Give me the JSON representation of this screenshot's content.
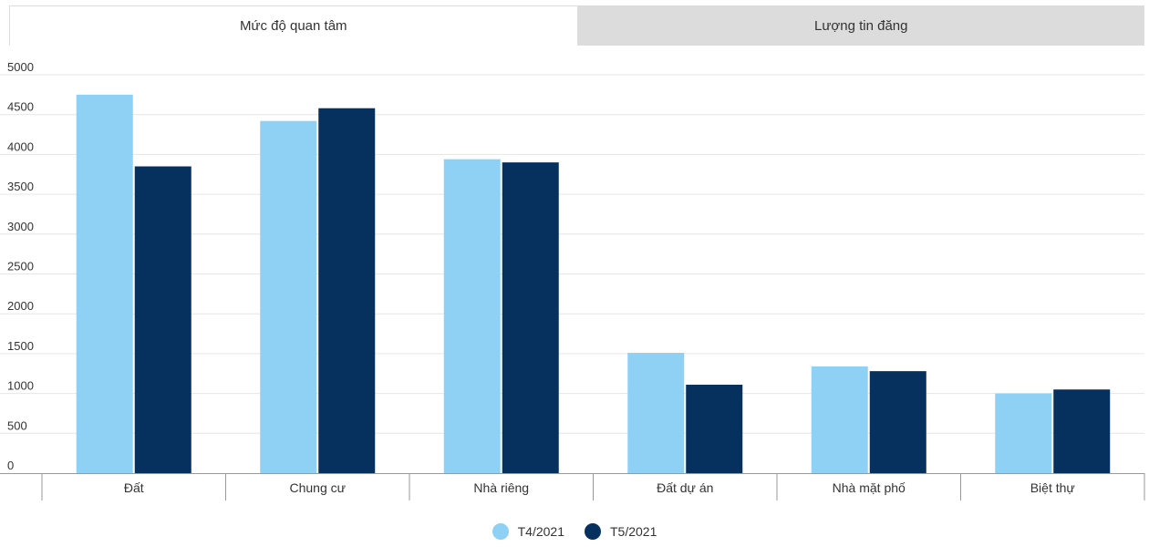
{
  "tabs": [
    {
      "label": "Mức độ quan tâm",
      "active": true
    },
    {
      "label": "Lượng tin đăng",
      "active": false
    }
  ],
  "colors": {
    "series1": "#8fd0f5",
    "series2": "#06305e",
    "grid": "#e6e6e6",
    "axis": "#999999"
  },
  "chart_data": {
    "type": "bar",
    "categories": [
      "Đất",
      "Chung cư",
      "Nhà riêng",
      "Đất dự án",
      "Nhà mặt phố",
      "Biệt thự"
    ],
    "series": [
      {
        "name": "T4/2021",
        "values": [
          4750,
          4420,
          3940,
          1510,
          1340,
          1000
        ]
      },
      {
        "name": "T5/2021",
        "values": [
          3850,
          4580,
          3900,
          1110,
          1280,
          1050
        ]
      }
    ],
    "ylim": [
      0,
      5000
    ],
    "yticks": [
      0,
      500,
      1000,
      1500,
      2000,
      2500,
      3000,
      3500,
      4000,
      4500,
      5000
    ],
    "grid": true,
    "legend": "bottom-center"
  }
}
